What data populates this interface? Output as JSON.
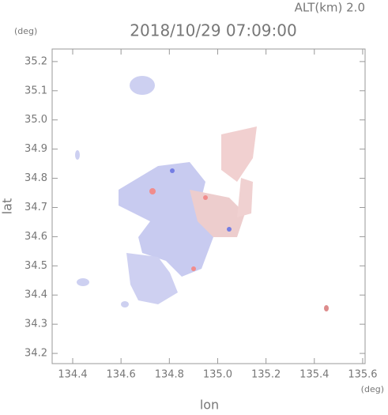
{
  "chart_data": {
    "type": "map",
    "title": "2018/10/29 07:09:00",
    "subtitle": "ALT(km) 2.0",
    "x_label": "lon",
    "x_unit": "(deg)",
    "y_label": "lat",
    "y_unit": "(deg)",
    "xlim": [
      134.315,
      135.61
    ],
    "ylim": [
      34.165,
      35.243
    ],
    "xticks": [
      134.4,
      134.6,
      134.8,
      {
        "value": 135,
        "label": "135.0"
      },
      135.2,
      135.4,
      135.6
    ],
    "yticks": [
      34.2,
      34.3,
      34.4,
      34.5,
      34.6,
      34.7,
      34.8,
      34.9,
      {
        "value": 35,
        "label": "35.0"
      },
      35.1,
      35.2
    ]
  }
}
